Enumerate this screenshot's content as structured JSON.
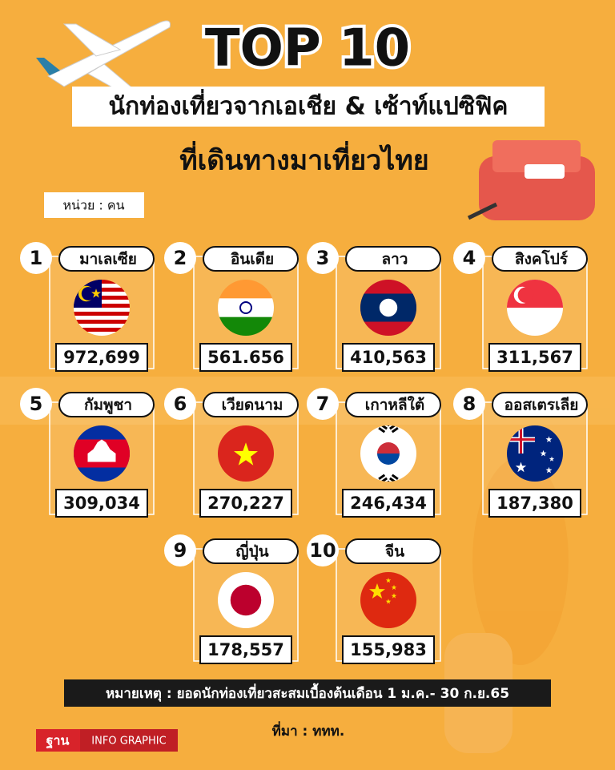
{
  "header": {
    "title": "TOP 10",
    "subtitle": "นักท่องเที่ยวจากเอเชีย & เซ้าท์แปซิฟิค",
    "subtitle2": "ที่เดินทางมาเที่ยวไทย",
    "unit": "หน่วย : คน"
  },
  "items": [
    {
      "rank": "1",
      "country": "มาเลเซีย",
      "value": "972,699"
    },
    {
      "rank": "2",
      "country": "อินเดีย",
      "value": "561.656"
    },
    {
      "rank": "3",
      "country": "ลาว",
      "value": "410,563"
    },
    {
      "rank": "4",
      "country": "สิงคโปร์",
      "value": "311,567"
    },
    {
      "rank": "5",
      "country": "กัมพูชา",
      "value": "309,034"
    },
    {
      "rank": "6",
      "country": "เวียดนาม",
      "value": "270,227"
    },
    {
      "rank": "7",
      "country": "เกาหลีใต้",
      "value": "246,434"
    },
    {
      "rank": "8",
      "country": "ออสเตรเลีย",
      "value": "187,380"
    },
    {
      "rank": "9",
      "country": "ญี่ปุ่น",
      "value": "178,557"
    },
    {
      "rank": "10",
      "country": "จีน",
      "value": "155,983"
    }
  ],
  "note": "หมายเหตุ : ยอดนักท่องเที่ยวสะสมเบื้องต้นเดือน 1 ม.ค.- 30 ก.ย.65",
  "source": "ที่มา : ททท.",
  "brand": {
    "logo": "ฐาน",
    "tag": "INFO GRAPHIC"
  }
}
